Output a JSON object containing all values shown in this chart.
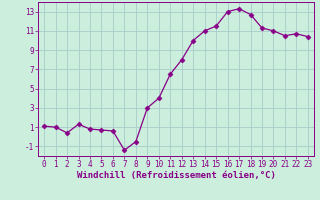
{
  "x": [
    0,
    1,
    2,
    3,
    4,
    5,
    6,
    7,
    8,
    9,
    10,
    11,
    12,
    13,
    14,
    15,
    16,
    17,
    18,
    19,
    20,
    21,
    22,
    23
  ],
  "y": [
    1.1,
    1.0,
    0.4,
    1.3,
    0.8,
    0.7,
    0.6,
    -1.4,
    -0.5,
    3.0,
    4.0,
    6.5,
    8.0,
    10.0,
    11.0,
    11.5,
    13.0,
    13.3,
    12.7,
    11.3,
    11.0,
    10.5,
    10.7,
    10.4
  ],
  "line_color": "#880088",
  "marker": "D",
  "marker_size": 2.5,
  "bg_color": "#cceedd",
  "grid_color": "#aacccc",
  "xlabel": "Windchill (Refroidissement éolien,°C)",
  "tick_color": "#880088",
  "ylim": [
    -2,
    14
  ],
  "xlim": [
    -0.5,
    23.5
  ],
  "yticks": [
    -1,
    1,
    3,
    5,
    7,
    9,
    11,
    13
  ],
  "xticks": [
    0,
    1,
    2,
    3,
    4,
    5,
    6,
    7,
    8,
    9,
    10,
    11,
    12,
    13,
    14,
    15,
    16,
    17,
    18,
    19,
    20,
    21,
    22,
    23
  ],
  "font_family": "monospace",
  "tick_fontsize": 5.5,
  "xlabel_fontsize": 6.5
}
